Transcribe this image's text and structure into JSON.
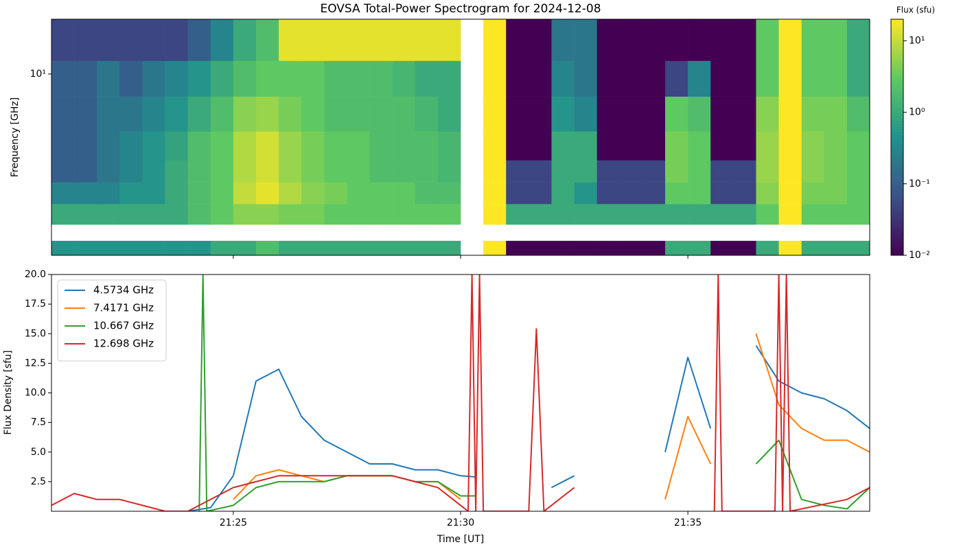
{
  "chart_data": [
    {
      "type": "heatmap",
      "title": "EOVSA Total-Power Spectrogram for 2024-12-08",
      "ylabel": "Frequency [GHz]",
      "x": [
        "21:21:15",
        "21:21:45",
        "21:22:15",
        "21:22:45",
        "21:23:15",
        "21:23:45",
        "21:24:15",
        "21:24:45",
        "21:25:15",
        "21:25:45",
        "21:26:15",
        "21:26:45",
        "21:27:15",
        "21:27:45",
        "21:28:15",
        "21:28:45",
        "21:29:15",
        "21:29:45",
        "21:30:15",
        "21:30:45",
        "21:31:15",
        "21:31:45",
        "21:32:15",
        "21:32:45",
        "21:33:15",
        "21:33:45",
        "21:34:15",
        "21:34:45",
        "21:35:15",
        "21:35:45",
        "21:36:15",
        "21:36:45",
        "21:37:15",
        "21:37:45",
        "21:38:15",
        "21:38:45"
      ],
      "y": [
        1.55,
        1.8,
        2.2,
        2.8,
        3.5,
        4.5,
        6.5,
        9.5,
        14
      ],
      "values": [
        [
          0.5,
          0.5,
          0.5,
          0.5,
          0.5,
          0.5,
          0.5,
          1,
          1,
          2,
          1,
          1,
          1,
          1,
          1,
          1,
          1,
          1,
          null,
          20,
          0.01,
          0.01,
          0.01,
          0.01,
          0.01,
          0.01,
          0.01,
          1,
          1,
          0.01,
          0.01,
          1,
          20,
          1,
          1,
          1
        ],
        [
          null,
          null,
          null,
          null,
          null,
          null,
          null,
          null,
          null,
          null,
          null,
          null,
          null,
          null,
          null,
          null,
          null,
          null,
          null,
          null,
          null,
          null,
          null,
          null,
          null,
          null,
          null,
          null,
          null,
          null,
          null,
          null,
          null,
          null,
          null,
          null
        ],
        [
          1,
          1,
          1,
          1,
          1,
          1,
          2,
          3,
          5,
          5,
          4,
          4,
          3,
          3,
          3,
          3,
          3,
          3,
          null,
          20,
          1,
          1,
          1,
          1,
          1,
          1,
          1,
          1,
          1,
          1,
          1,
          3,
          20,
          3,
          3,
          3
        ],
        [
          0.3,
          0.3,
          0.3,
          0.5,
          0.5,
          1,
          2,
          3,
          10,
          15,
          8,
          5,
          4,
          3,
          3,
          3,
          2,
          2,
          null,
          20,
          0.05,
          0.05,
          1,
          0.5,
          0.05,
          0.05,
          0.05,
          3,
          3,
          0.05,
          0.05,
          5,
          20,
          4,
          4,
          3
        ],
        [
          0.1,
          0.1,
          0.2,
          0.3,
          0.5,
          1,
          2,
          3,
          8,
          12,
          6,
          4,
          3,
          3,
          2,
          2,
          2,
          1.5,
          null,
          20,
          0.05,
          0.05,
          1,
          1,
          0.05,
          0.05,
          0.05,
          4,
          3,
          0.05,
          0.05,
          6,
          20,
          5,
          4,
          3
        ],
        [
          0.1,
          0.1,
          0.2,
          0.3,
          0.5,
          0.8,
          2,
          3,
          8,
          12,
          6,
          4,
          3,
          3,
          2,
          2,
          2,
          1.5,
          null,
          20,
          0.01,
          0.01,
          1,
          1,
          0.01,
          0.01,
          0.01,
          4,
          3,
          0.01,
          0.01,
          6,
          20,
          5,
          4,
          3
        ],
        [
          0.1,
          0.1,
          0.2,
          0.2,
          0.3,
          0.5,
          1,
          2,
          5,
          6,
          4,
          3,
          2,
          2,
          2,
          2,
          1.5,
          1,
          null,
          20,
          0.01,
          0.01,
          0.5,
          0.3,
          0.01,
          0.01,
          0.01,
          3,
          2,
          0.01,
          0.01,
          5,
          20,
          4,
          4,
          2
        ],
        [
          0.1,
          0.1,
          0.2,
          0.1,
          0.2,
          0.3,
          0.5,
          1,
          2,
          3,
          3,
          3,
          2,
          2,
          2,
          1.5,
          1,
          1,
          null,
          20,
          0.01,
          0.01,
          0.3,
          0.2,
          0.01,
          0.01,
          0.01,
          0.05,
          0.3,
          0.01,
          0.01,
          3,
          20,
          3,
          3,
          1
        ],
        [
          0.05,
          0.05,
          0.05,
          0.05,
          0.05,
          0.05,
          0.1,
          0.3,
          1,
          2,
          15,
          15,
          15,
          15,
          15,
          15,
          15,
          15,
          null,
          20,
          0.01,
          0.01,
          0.2,
          0.2,
          0.01,
          0.01,
          0.01,
          0.01,
          0.01,
          0.01,
          0.01,
          3,
          20,
          3,
          3,
          1
        ]
      ],
      "xlim": [
        "21:21",
        "21:39"
      ],
      "xticks": [
        "21:25",
        "21:30",
        "21:35"
      ],
      "xtick_labels": false,
      "ylim": [
        1.43,
        18
      ],
      "yscale": "log",
      "yticks": [
        {
          "value": 10,
          "label": "10¹"
        }
      ],
      "colormap": "viridis",
      "clim": [
        0.01,
        20
      ],
      "colorbar_label": "Flux (sfu)",
      "colorbar_ticks": [
        {
          "value": 0.01,
          "label": "10⁻²"
        },
        {
          "value": 0.1,
          "label": "10⁻¹"
        },
        {
          "value": 1,
          "label": "10⁰"
        },
        {
          "value": 10,
          "label": "10¹"
        }
      ]
    },
    {
      "type": "line",
      "xlabel": "Time [UT]",
      "ylabel": "Flux Density [sfu]",
      "xlim": [
        "21:21",
        "21:39"
      ],
      "xticks": [
        "21:25",
        "21:30",
        "21:35"
      ],
      "ylim": [
        0,
        20
      ],
      "yticks": [
        2.5,
        {
          "value": 5,
          "label": "5.0"
        },
        7.5,
        {
          "value": 10,
          "label": "10.0"
        },
        12.5,
        {
          "value": 15,
          "label": "15.0"
        },
        17.5,
        {
          "value": 20,
          "label": "20.0"
        }
      ],
      "legend": "upper left",
      "series": [
        {
          "name": "4.5734 GHz",
          "color": "#1f77b4",
          "x": [
            "21:24:00",
            "21:24:30",
            "21:25:00",
            "21:25:30",
            "21:26:00",
            "21:26:30",
            "21:27:00",
            "21:27:30",
            "21:28:00",
            "21:28:30",
            "21:29:00",
            "21:29:30",
            "21:30:00",
            "21:30:20",
            "21:30:30",
            "21:31:00",
            "21:31:30",
            "21:32:00",
            "21:32:30",
            "21:33:00",
            "21:34:00",
            "21:34:30",
            "21:35:00",
            "21:35:30",
            "21:35:45",
            "21:36:30",
            "21:37:00",
            "21:37:30",
            "21:38:00",
            "21:38:30",
            "21:39:00"
          ],
          "values": [
            0,
            0.3,
            3,
            11,
            12,
            8,
            6,
            5,
            4,
            4,
            3.5,
            3.5,
            3,
            2.9,
            null,
            null,
            null,
            2,
            3,
            null,
            null,
            5,
            13,
            7,
            null,
            14,
            11,
            10,
            9.5,
            8.5,
            7
          ]
        },
        {
          "name": "7.4171 GHz",
          "color": "#ff7f0e",
          "x": [
            "21:25:00",
            "21:25:30",
            "21:26:00",
            "21:26:30",
            "21:27:00",
            "21:27:30",
            "21:28:00",
            "21:28:30",
            "21:29:00",
            "21:29:30",
            "21:30:00",
            "21:32:00",
            "21:34:30",
            "21:35:00",
            "21:35:30",
            "21:36:00",
            "21:36:30",
            "21:37:00",
            "21:37:30",
            "21:38:00",
            "21:38:30",
            "21:39:00"
          ],
          "values": [
            1,
            3,
            3.5,
            3,
            2.5,
            3,
            3,
            3,
            2.5,
            2.5,
            1,
            null,
            1,
            8,
            4,
            null,
            15,
            9,
            7,
            6,
            6,
            5
          ]
        },
        {
          "name": "10.667 GHz",
          "color": "#2ca02c",
          "x": [
            "21:24:15",
            "21:24:20",
            "21:24:25",
            "21:25:00",
            "21:25:30",
            "21:26:00",
            "21:26:30",
            "21:27:00",
            "21:27:30",
            "21:28:00",
            "21:28:30",
            "21:29:00",
            "21:29:30",
            "21:30:00",
            "21:30:20",
            "21:32:00",
            "21:36:30",
            "21:37:00",
            "21:37:30",
            "21:38:00",
            "21:38:30",
            "21:39:00"
          ],
          "values": [
            0,
            20,
            0,
            0.5,
            2,
            2.5,
            2.5,
            2.5,
            3,
            3,
            3,
            2.5,
            2.5,
            1.3,
            1.3,
            null,
            4,
            6,
            1,
            0.5,
            0.2,
            2
          ]
        },
        {
          "name": "12.698 GHz",
          "color": "#d62728",
          "x": [
            "21:21:00",
            "21:21:30",
            "21:22:00",
            "21:22:30",
            "21:23:00",
            "21:23:30",
            "21:24:00",
            "21:24:30",
            "21:25:00",
            "21:25:30",
            "21:26:00",
            "21:26:30",
            "21:27:00",
            "21:27:30",
            "21:28:00",
            "21:28:30",
            "21:29:00",
            "21:29:30",
            "21:30:00",
            "21:30:10",
            "21:30:15",
            "21:30:20",
            "21:30:25",
            "21:30:30",
            "21:31:30",
            "21:31:40",
            "21:31:50",
            "21:32:00",
            "21:32:30",
            "21:33:00",
            "21:35:35",
            "21:35:40",
            "21:35:45",
            "21:36:55",
            "21:37:00",
            "21:37:05",
            "21:37:10",
            "21:37:15",
            "21:38:30",
            "21:39:00"
          ],
          "values": [
            0.5,
            1.5,
            1,
            1,
            0.5,
            0,
            0,
            1,
            2,
            2.5,
            3,
            3,
            3,
            3,
            3,
            3,
            2.5,
            2,
            0.5,
            0,
            20,
            0,
            20,
            0,
            0,
            15.4,
            0,
            0.5,
            2,
            null,
            0,
            20,
            0,
            0,
            20,
            0,
            20,
            0,
            1,
            2
          ]
        }
      ]
    }
  ]
}
